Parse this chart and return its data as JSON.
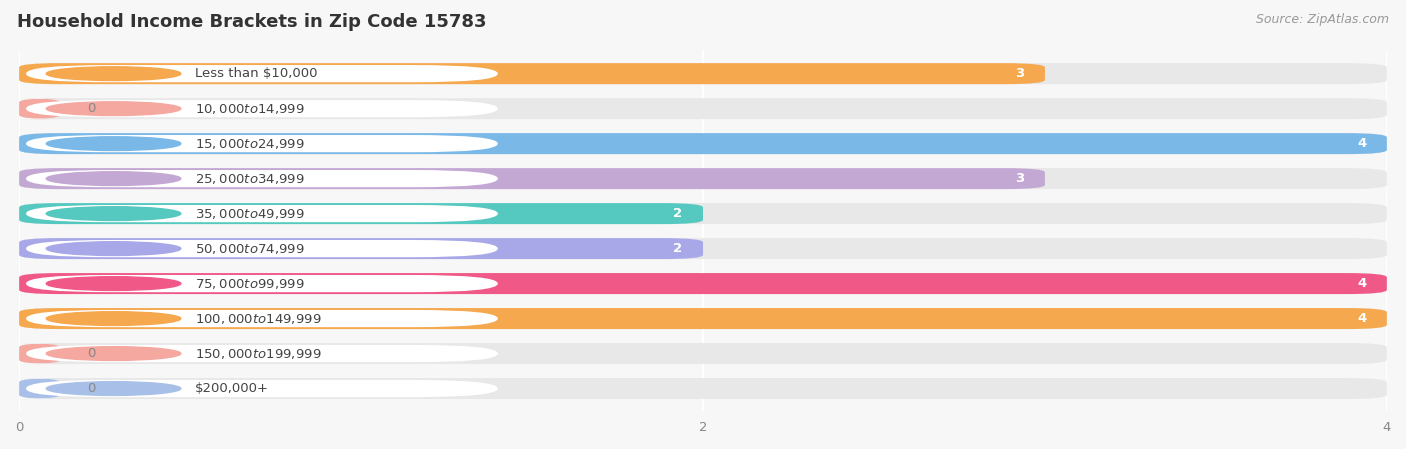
{
  "title": "Household Income Brackets in Zip Code 15783",
  "source": "Source: ZipAtlas.com",
  "categories": [
    "Less than $10,000",
    "$10,000 to $14,999",
    "$15,000 to $24,999",
    "$25,000 to $34,999",
    "$35,000 to $49,999",
    "$50,000 to $74,999",
    "$75,000 to $99,999",
    "$100,000 to $149,999",
    "$150,000 to $199,999",
    "$200,000+"
  ],
  "values": [
    3,
    0,
    4,
    3,
    2,
    2,
    4,
    4,
    0,
    0
  ],
  "bar_colors": [
    "#f5a84e",
    "#f4a8a0",
    "#7ab8e8",
    "#c4a8d4",
    "#55c8c0",
    "#a8a8e8",
    "#f05888",
    "#f5a84e",
    "#f4a8a0",
    "#a8c0e8"
  ],
  "xlim": [
    0,
    4.0
  ],
  "xticks": [
    0,
    2,
    4
  ],
  "background_color": "#f7f7f7",
  "bar_bg_color": "#e8e8e8",
  "grid_color": "#ffffff",
  "title_fontsize": 13,
  "source_fontsize": 9,
  "label_fontsize": 9.5,
  "value_fontsize": 9.5
}
